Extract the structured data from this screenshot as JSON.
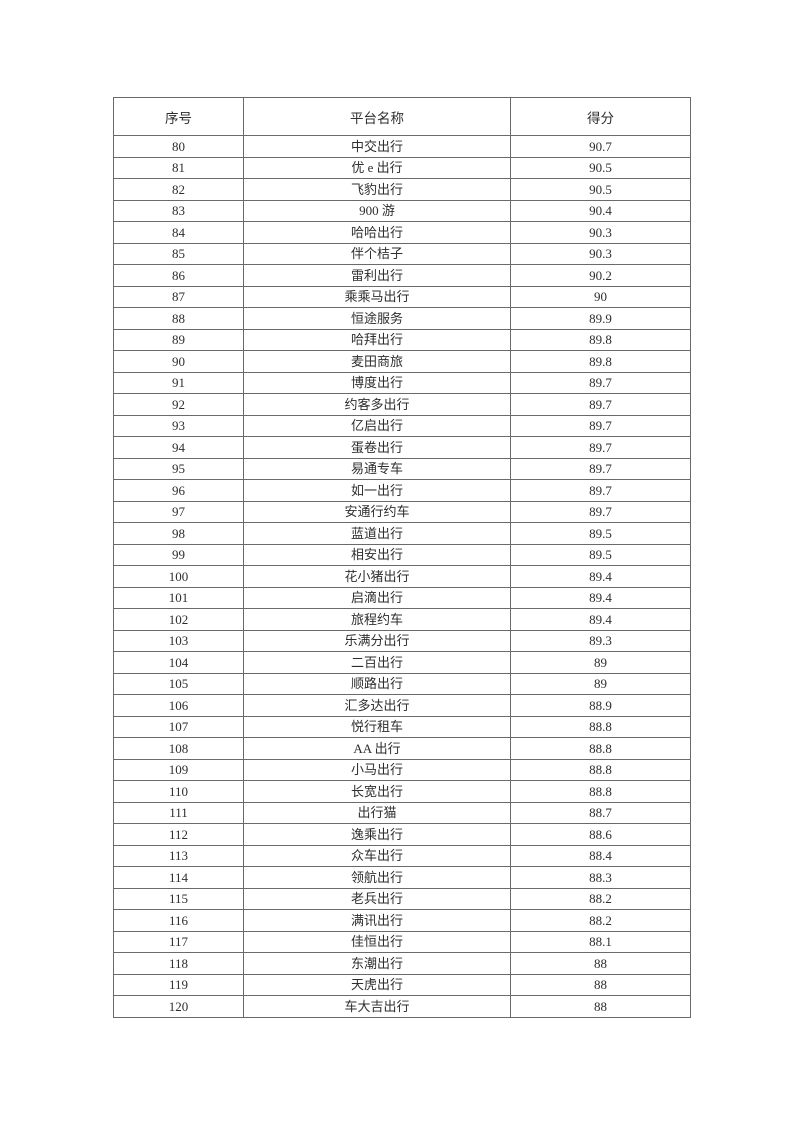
{
  "page": {
    "background": "#ffffff",
    "text_color": "#2e2e2e",
    "border_color": "#6a6a6a"
  },
  "table": {
    "headers": [
      "序号",
      "平台名称",
      "得分"
    ],
    "rows": [
      [
        "80",
        "中交出行",
        "90.7"
      ],
      [
        "81",
        "优 e 出行",
        "90.5"
      ],
      [
        "82",
        "飞豹出行",
        "90.5"
      ],
      [
        "83",
        "900 游",
        "90.4"
      ],
      [
        "84",
        "哈哈出行",
        "90.3"
      ],
      [
        "85",
        "伴个桔子",
        "90.3"
      ],
      [
        "86",
        "雷利出行",
        "90.2"
      ],
      [
        "87",
        "乘乘马出行",
        "90"
      ],
      [
        "88",
        "恒途服务",
        "89.9"
      ],
      [
        "89",
        "哈拜出行",
        "89.8"
      ],
      [
        "90",
        "麦田商旅",
        "89.8"
      ],
      [
        "91",
        "博度出行",
        "89.7"
      ],
      [
        "92",
        "约客多出行",
        "89.7"
      ],
      [
        "93",
        "亿启出行",
        "89.7"
      ],
      [
        "94",
        "蛋卷出行",
        "89.7"
      ],
      [
        "95",
        "易通专车",
        "89.7"
      ],
      [
        "96",
        "如一出行",
        "89.7"
      ],
      [
        "97",
        "安通行约车",
        "89.7"
      ],
      [
        "98",
        "蓝道出行",
        "89.5"
      ],
      [
        "99",
        "相安出行",
        "89.5"
      ],
      [
        "100",
        "花小猪出行",
        "89.4"
      ],
      [
        "101",
        "启滴出行",
        "89.4"
      ],
      [
        "102",
        "旅程约车",
        "89.4"
      ],
      [
        "103",
        "乐满分出行",
        "89.3"
      ],
      [
        "104",
        "二百出行",
        "89"
      ],
      [
        "105",
        "顺路出行",
        "89"
      ],
      [
        "106",
        "汇多达出行",
        "88.9"
      ],
      [
        "107",
        "悦行租车",
        "88.8"
      ],
      [
        "108",
        "AA 出行",
        "88.8"
      ],
      [
        "109",
        "小马出行",
        "88.8"
      ],
      [
        "110",
        "长宽出行",
        "88.8"
      ],
      [
        "111",
        "出行猫",
        "88.7"
      ],
      [
        "112",
        "逸乘出行",
        "88.6"
      ],
      [
        "113",
        "众车出行",
        "88.4"
      ],
      [
        "114",
        "领航出行",
        "88.3"
      ],
      [
        "115",
        "老兵出行",
        "88.2"
      ],
      [
        "116",
        "满讯出行",
        "88.2"
      ],
      [
        "117",
        "佳恒出行",
        "88.1"
      ],
      [
        "118",
        "东潮出行",
        "88"
      ],
      [
        "119",
        "天虎出行",
        "88"
      ],
      [
        "120",
        "车大吉出行",
        "88"
      ]
    ]
  }
}
